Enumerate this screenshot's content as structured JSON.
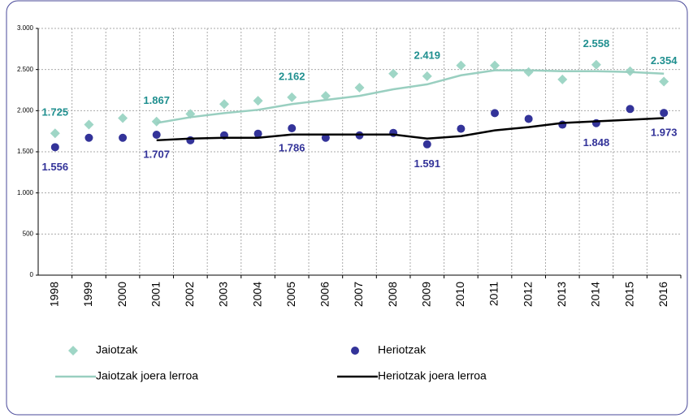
{
  "chart_data": {
    "type": "line",
    "categories": [
      "1998",
      "1999",
      "2000",
      "2001",
      "2002",
      "2003",
      "2004",
      "2005",
      "2006",
      "2007",
      "2008",
      "2009",
      "2010",
      "2011",
      "2012",
      "2013",
      "2014",
      "2015",
      "2016"
    ],
    "ylim": [
      0,
      3000
    ],
    "yticks": [
      0,
      500,
      {
        "value": 1000,
        "label": "1.000"
      },
      {
        "value": 1500,
        "label": "1.500"
      },
      {
        "value": 2000,
        "label": "2.000"
      },
      {
        "value": 2500,
        "label": "2.500"
      },
      {
        "value": 3000,
        "label": "3.000"
      }
    ],
    "grid": true,
    "legend": "bottom",
    "series": [
      {
        "name": "Jaiotzak",
        "kind": "diamond",
        "color": "#9fd6c6",
        "label_color": "#1f8f8f",
        "values": [
          1725,
          1830,
          1910,
          1867,
          1960,
          2080,
          2120,
          2162,
          2180,
          2280,
          2450,
          2419,
          2550,
          2550,
          2470,
          2380,
          2558,
          2480,
          2354
        ],
        "value_labels": [
          "1.725",
          null,
          null,
          "1.867",
          null,
          null,
          null,
          "2.162",
          null,
          null,
          null,
          "2.419",
          null,
          null,
          null,
          null,
          "2.558",
          null,
          "2.354"
        ]
      },
      {
        "name": "Heriotzak",
        "kind": "dot",
        "color": "#333399",
        "label_color": "#333399",
        "values": [
          1556,
          1670,
          1670,
          1707,
          1640,
          1700,
          1720,
          1786,
          1670,
          1700,
          1730,
          1591,
          1780,
          1970,
          1900,
          1830,
          1848,
          2020,
          1973
        ],
        "value_labels": [
          "1.556",
          null,
          null,
          "1.707",
          null,
          null,
          null,
          "1.786",
          null,
          null,
          null,
          "1.591",
          null,
          null,
          null,
          null,
          "1.848",
          null,
          "1.973"
        ]
      },
      {
        "name": "Jaiotzak joera lerroa",
        "kind": "line",
        "color": "#99cfc0",
        "values": [
          null,
          null,
          null,
          1850,
          1920,
          1970,
          2010,
          2080,
          2130,
          2180,
          2260,
          2320,
          2430,
          2490,
          2490,
          2480,
          2480,
          2470,
          2450
        ]
      },
      {
        "name": "Heriotzak joera lerroa",
        "kind": "line",
        "color": "#000000",
        "values": [
          null,
          null,
          null,
          1640,
          1660,
          1670,
          1670,
          1710,
          1710,
          1710,
          1710,
          1660,
          1690,
          1760,
          1800,
          1850,
          1870,
          1890,
          1910
        ]
      }
    ]
  }
}
